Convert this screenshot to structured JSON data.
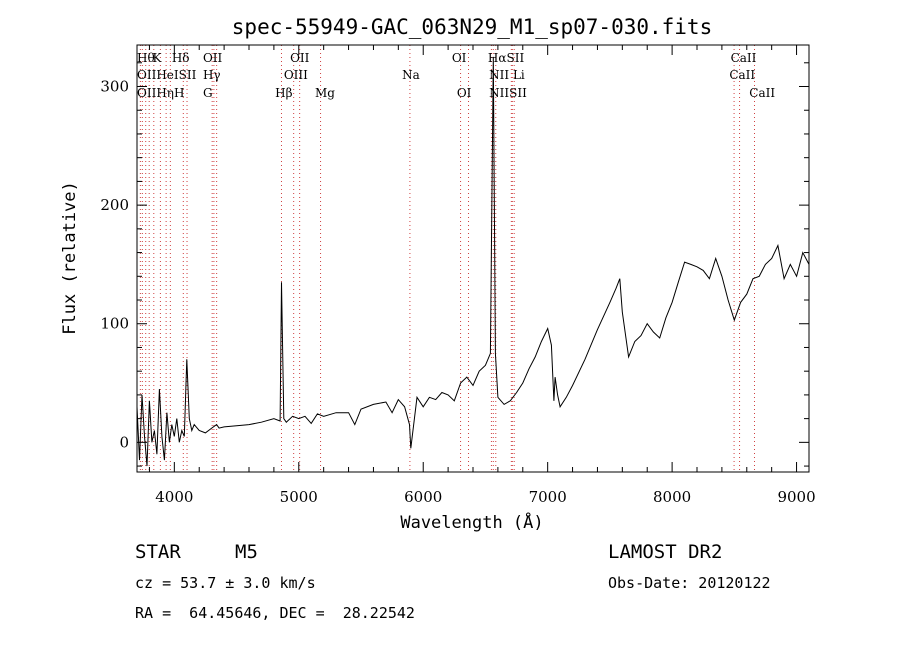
{
  "chart_data": {
    "type": "line",
    "title": "spec-55949-GAC_063N29_M1_sp07-030.fits",
    "xlabel": "Wavelength (Å)",
    "ylabel": "Flux (relative)",
    "xlim": [
      3700,
      9100
    ],
    "ylim": [
      -25,
      335
    ],
    "x_ticks": [
      4000,
      5000,
      6000,
      7000,
      8000,
      9000
    ],
    "y_ticks": [
      0,
      100,
      200,
      300
    ],
    "grid": false,
    "series": [
      {
        "x": [
          3700,
          3720,
          3740,
          3760,
          3780,
          3800,
          3820,
          3840,
          3860,
          3880,
          3900,
          3920,
          3940,
          3960,
          3980,
          4000,
          4020,
          4040,
          4060,
          4080,
          4100,
          4120,
          4140,
          4160,
          4200,
          4250,
          4300,
          4340,
          4360,
          4400,
          4500,
          4600,
          4700,
          4800,
          4850,
          4861,
          4880,
          4900,
          4950,
          5000,
          5050,
          5100,
          5150,
          5200,
          5300,
          5400,
          5450,
          5500,
          5600,
          5700,
          5750,
          5800,
          5850,
          5890,
          5900,
          5950,
          6000,
          6050,
          6100,
          6150,
          6200,
          6250,
          6300,
          6350,
          6400,
          6450,
          6500,
          6540,
          6563,
          6580,
          6600,
          6650,
          6700,
          6750,
          6800,
          6850,
          6900,
          6950,
          7000,
          7030,
          7050,
          7060,
          7080,
          7100,
          7150,
          7200,
          7300,
          7400,
          7500,
          7550,
          7580,
          7600,
          7650,
          7700,
          7750,
          7800,
          7850,
          7900,
          7950,
          8000,
          8050,
          8100,
          8150,
          8200,
          8250,
          8300,
          8350,
          8400,
          8450,
          8500,
          8550,
          8600,
          8650,
          8700,
          8750,
          8800,
          8850,
          8900,
          8950,
          9000,
          9050,
          9100
        ],
        "y": [
          30,
          -15,
          40,
          5,
          -20,
          35,
          0,
          10,
          -10,
          45,
          5,
          -15,
          25,
          0,
          15,
          5,
          20,
          0,
          10,
          5,
          70,
          20,
          10,
          15,
          10,
          8,
          12,
          15,
          12,
          13,
          14,
          15,
          17,
          20,
          18,
          135,
          20,
          17,
          22,
          20,
          22,
          16,
          24,
          22,
          25,
          25,
          15,
          28,
          32,
          34,
          25,
          36,
          30,
          15,
          -5,
          38,
          30,
          38,
          36,
          42,
          40,
          35,
          50,
          55,
          48,
          60,
          65,
          75,
          325,
          75,
          38,
          32,
          35,
          42,
          50,
          62,
          72,
          85,
          96,
          82,
          35,
          55,
          40,
          30,
          38,
          48,
          70,
          95,
          118,
          130,
          138,
          110,
          72,
          85,
          90,
          100,
          93,
          88,
          105,
          118,
          135,
          152,
          150,
          148,
          145,
          138,
          155,
          140,
          120,
          103,
          118,
          125,
          138,
          140,
          150,
          155,
          166,
          138,
          150,
          140,
          160,
          150
        ]
      }
    ],
    "emission_lines": [
      {
        "label": "Hθ",
        "x": 3798
      },
      {
        "label": "OII",
        "x": 3727
      },
      {
        "label": "OIII",
        "x": 3743
      },
      {
        "label": "Hε",
        "x": 3770
      },
      {
        "label": "Hη",
        "x": 3835
      },
      {
        "label": "HeI",
        "x": 3888
      },
      {
        "label": "K",
        "x": 3934
      },
      {
        "label": "H",
        "x": 3968
      },
      {
        "label": "SII",
        "x": 4072
      },
      {
        "label": "Hδ",
        "x": 4102
      },
      {
        "label": "OIII",
        "x": 4318
      },
      {
        "label": "Hγ",
        "x": 4340
      },
      {
        "label": "G",
        "x": 4304
      },
      {
        "label": "Hβ",
        "x": 4861
      },
      {
        "label": "OIII",
        "x": 4959
      },
      {
        "label": "OIII",
        "x": 5007
      },
      {
        "label": "Mg",
        "x": 5175
      },
      {
        "label": "Na",
        "x": 5893
      },
      {
        "label": "OI",
        "x": 6300
      },
      {
        "label": "OI",
        "x": 6364
      },
      {
        "label": "NII",
        "x": 6548
      },
      {
        "label": "Hα",
        "x": 6563
      },
      {
        "label": "NII",
        "x": 6583
      },
      {
        "label": "SII",
        "x": 6716
      },
      {
        "label": "SII",
        "x": 6731
      },
      {
        "label": "Li",
        "x": 6708
      },
      {
        "label": "CaII",
        "x": 8498
      },
      {
        "label": "CaII",
        "x": 8542
      },
      {
        "label": "CaII",
        "x": 8662
      }
    ],
    "line_labels": [
      {
        "text": "Hθ",
        "row": 0,
        "x": 3700
      },
      {
        "text": "K",
        "row": 0,
        "x": 3825
      },
      {
        "text": "Hδ",
        "row": 0,
        "x": 3980
      },
      {
        "text": "OII",
        "row": 0,
        "x": 4230
      },
      {
        "text": "OII",
        "row": 0,
        "x": 4930
      },
      {
        "text": "OI",
        "row": 0,
        "x": 6230
      },
      {
        "text": "HαSII",
        "row": 0,
        "x": 6520
      },
      {
        "text": "CaII",
        "row": 0,
        "x": 8470
      },
      {
        "text": "OIIHeISII",
        "row": 1,
        "x": 3700
      },
      {
        "text": "Hγ",
        "row": 1,
        "x": 4230
      },
      {
        "text": "OIII",
        "row": 1,
        "x": 4880
      },
      {
        "text": "Na",
        "row": 1,
        "x": 5830
      },
      {
        "text": "NII Li",
        "row": 1,
        "x": 6530
      },
      {
        "text": "CaII",
        "row": 1,
        "x": 8460
      },
      {
        "text": "OIIHηH",
        "row": 2,
        "x": 3700
      },
      {
        "text": "G",
        "row": 2,
        "x": 4230
      },
      {
        "text": "Hβ",
        "row": 2,
        "x": 4810
      },
      {
        "text": "Mg",
        "row": 2,
        "x": 5130
      },
      {
        "text": "OI",
        "row": 2,
        "x": 6270
      },
      {
        "text": "NIISII",
        "row": 2,
        "x": 6530
      },
      {
        "text": "CaII",
        "row": 2,
        "x": 8620
      }
    ]
  },
  "info": {
    "object_class": "STAR",
    "subclass": "M5",
    "survey": "LAMOST DR2",
    "cz": "cz = 53.7 ± 3.0 km/s",
    "obs_date": "Obs-Date: 20120122",
    "coords": "RA =  64.45646, DEC =  28.22542"
  }
}
